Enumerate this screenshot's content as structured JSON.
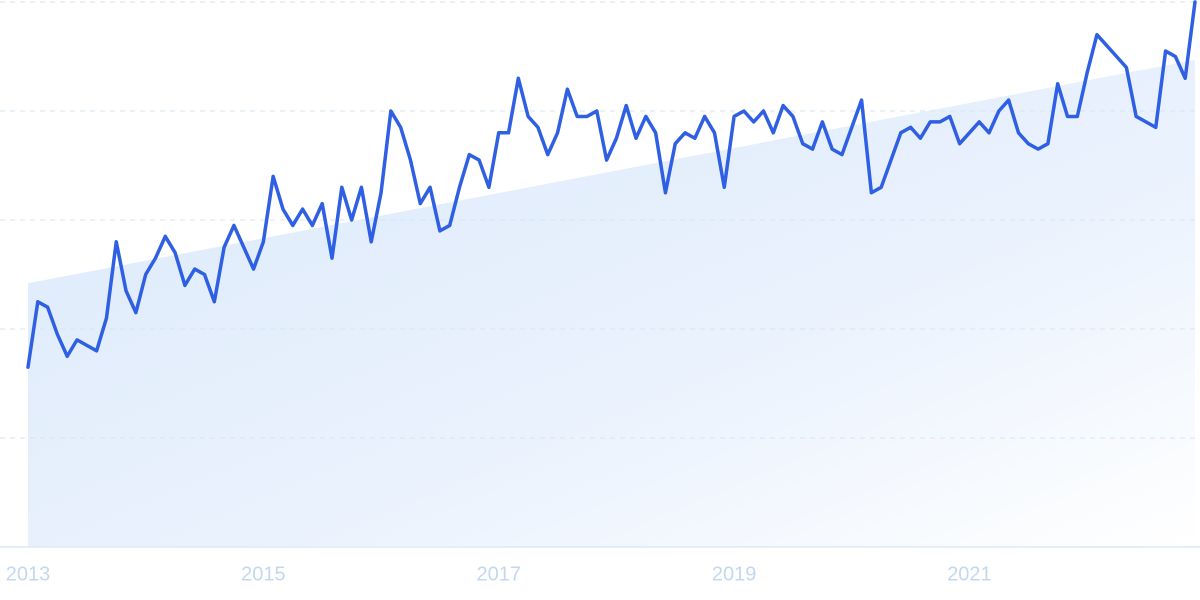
{
  "chart_data": {
    "type": "line",
    "categories": [
      "2013",
      null,
      null,
      null,
      null,
      null,
      null,
      null,
      null,
      null,
      null,
      null,
      null,
      null,
      null,
      null,
      null,
      null,
      null,
      null,
      null,
      null,
      null,
      null,
      "2015",
      null,
      null,
      null,
      null,
      null,
      null,
      null,
      null,
      null,
      null,
      null,
      null,
      null,
      null,
      null,
      null,
      null,
      null,
      null,
      null,
      null,
      null,
      null,
      "2017",
      null,
      null,
      null,
      null,
      null,
      null,
      null,
      null,
      null,
      null,
      null,
      null,
      null,
      null,
      null,
      null,
      null,
      null,
      null,
      null,
      null,
      null,
      null,
      "2019",
      null,
      null,
      null,
      null,
      null,
      null,
      null,
      null,
      null,
      null,
      null,
      null,
      null,
      null,
      null,
      null,
      null,
      null,
      null,
      null,
      null,
      null,
      null,
      "2021",
      null,
      null,
      null,
      null,
      null,
      null,
      null,
      null,
      null,
      null,
      null,
      null,
      null,
      null,
      null,
      null,
      null,
      null,
      null,
      null,
      null,
      null,
      null
    ],
    "series": [
      {
        "color": "#2f5fe3",
        "values": [
          33,
          45,
          44,
          39,
          35,
          38,
          37,
          36,
          42,
          56,
          47,
          43,
          50,
          53,
          57,
          54,
          48,
          51,
          50,
          45,
          55,
          59,
          55,
          51,
          56,
          68,
          62,
          59,
          62,
          59,
          63,
          53,
          66,
          60,
          66,
          56,
          65,
          80,
          77,
          71,
          63,
          66,
          58,
          59,
          66,
          72,
          71,
          66,
          76,
          76,
          86,
          79,
          77,
          72,
          76,
          84,
          79,
          79,
          80,
          71,
          75,
          81,
          75,
          79,
          76,
          65,
          74,
          76,
          75,
          79,
          76,
          66,
          79,
          80,
          78,
          80,
          76,
          81,
          79,
          74,
          73,
          78,
          73,
          72,
          77,
          82,
          65,
          66,
          71,
          76,
          77,
          75,
          78,
          78,
          79,
          74,
          76,
          78,
          76,
          80,
          82,
          76,
          74,
          73,
          74,
          85,
          79,
          79,
          87,
          94,
          92,
          90,
          88,
          79,
          78,
          77,
          91,
          90,
          86,
          100
        ]
      }
    ],
    "trend": [
      48.4,
      89.4
    ],
    "ylim": [
      0,
      100
    ],
    "yticks": [
      0,
      20,
      40,
      60,
      80,
      100
    ],
    "grid": true
  }
}
